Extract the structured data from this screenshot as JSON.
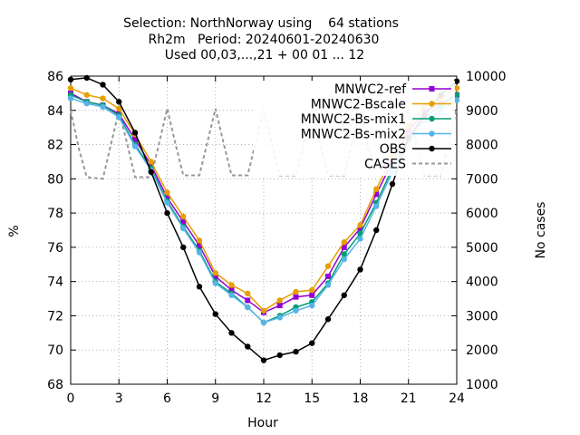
{
  "chart_data": {
    "type": "line",
    "title_lines": [
      "Selection: NorthNorway using    64 stations",
      "Rh2m   Period: 20240601-20240630",
      "Used 00,03,...,21 + 00 01 ... 12"
    ],
    "xlabel": "Hour",
    "ylabel": "%",
    "y2label": "No cases",
    "xlim": [
      0,
      24
    ],
    "ylim": [
      68,
      86
    ],
    "y2lim": [
      1000,
      10000
    ],
    "xticks": [
      "0",
      "3",
      "6",
      "9",
      "12",
      "15",
      "18",
      "21",
      "24"
    ],
    "yticks": [
      "68",
      "70",
      "72",
      "74",
      "76",
      "78",
      "80",
      "82",
      "84",
      "86"
    ],
    "y2ticks": [
      "1000",
      "2000",
      "3000",
      "4000",
      "5000",
      "6000",
      "7000",
      "8000",
      "9000",
      "10000"
    ],
    "grid": true,
    "legend_position": "top-right",
    "x": [
      0,
      1,
      2,
      3,
      4,
      5,
      6,
      7,
      8,
      9,
      10,
      11,
      12,
      13,
      14,
      15,
      16,
      17,
      18,
      19,
      20,
      21,
      22,
      23,
      24
    ],
    "series": [
      {
        "name": "MNWC2-ref",
        "color": "#9400d3",
        "marker": "square",
        "values": [
          85.0,
          84.5,
          84.3,
          83.8,
          82.3,
          80.8,
          78.9,
          77.5,
          76.1,
          74.3,
          73.5,
          72.9,
          72.2,
          72.6,
          73.1,
          73.2,
          74.3,
          76.0,
          77.1,
          79.1,
          81.0,
          82.8,
          83.9,
          84.4,
          84.9
        ]
      },
      {
        "name": "MNWC2-Bscale",
        "color": "#e69f00",
        "marker": "circle",
        "values": [
          85.3,
          84.9,
          84.7,
          84.1,
          82.6,
          81.0,
          79.2,
          77.8,
          76.4,
          74.5,
          73.8,
          73.3,
          72.3,
          72.9,
          73.4,
          73.5,
          74.9,
          76.3,
          77.3,
          79.4,
          81.3,
          83.1,
          84.2,
          84.7,
          85.3
        ]
      },
      {
        "name": "MNWC2-Bs-mix1",
        "color": "#009e73",
        "marker": "circle",
        "values": [
          84.9,
          84.5,
          84.3,
          83.7,
          82.0,
          80.6,
          78.7,
          77.2,
          75.8,
          74.0,
          73.3,
          72.5,
          71.6,
          72.0,
          72.5,
          72.8,
          73.9,
          75.6,
          76.8,
          78.6,
          80.6,
          82.4,
          83.6,
          84.3,
          84.9
        ]
      },
      {
        "name": "MNWC2-Bs-mix2",
        "color": "#56b4e9",
        "marker": "circle",
        "values": [
          84.7,
          84.4,
          84.2,
          83.6,
          81.9,
          80.5,
          78.6,
          77.1,
          75.7,
          73.9,
          73.2,
          72.5,
          71.6,
          71.9,
          72.3,
          72.6,
          73.8,
          75.3,
          76.5,
          78.4,
          80.4,
          82.2,
          83.4,
          84.0,
          84.6
        ]
      },
      {
        "name": "OBS",
        "color": "#000000",
        "marker": "circle",
        "values": [
          85.8,
          85.9,
          85.5,
          84.5,
          82.7,
          80.4,
          78.0,
          76.0,
          73.7,
          72.1,
          71.0,
          70.2,
          69.4,
          69.7,
          69.9,
          70.4,
          71.8,
          73.2,
          74.7,
          77.0,
          79.7,
          82.4,
          83.7,
          84.9,
          85.7
        ]
      }
    ],
    "cases": {
      "name": "CASES",
      "color": "#999999",
      "axis": "y2",
      "x": [
        0,
        0.5,
        1,
        2,
        3,
        3.5,
        4,
        5,
        6,
        6.5,
        7,
        8,
        9,
        9.5,
        10,
        11,
        12,
        12.5,
        13,
        14,
        15,
        15.5,
        16,
        17,
        18,
        18.5,
        19,
        20,
        21,
        21.5,
        22,
        23,
        24
      ],
      "values": [
        9000,
        7900,
        7050,
        7000,
        9000,
        8050,
        7050,
        7050,
        9050,
        8050,
        7100,
        7100,
        9050,
        8050,
        7100,
        7100,
        9050,
        8050,
        7100,
        7100,
        9000,
        8050,
        7100,
        7100,
        9000,
        7850,
        7400,
        7400,
        9050,
        8000,
        7100,
        7100,
        9050
      ]
    }
  }
}
